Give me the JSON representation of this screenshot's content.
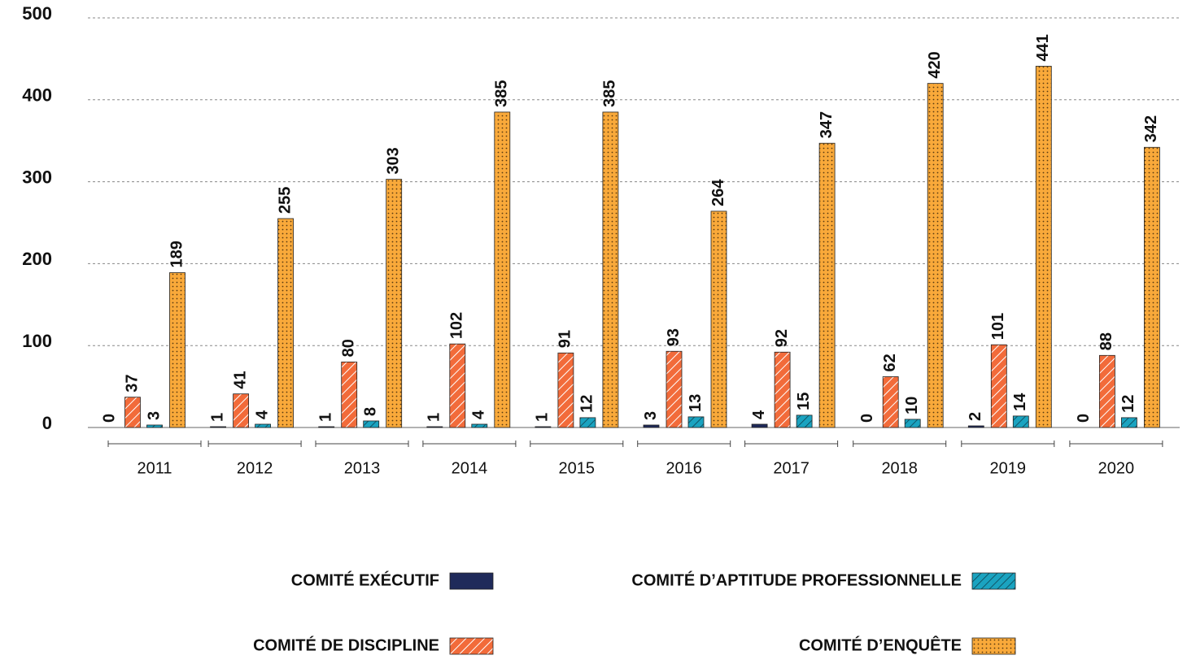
{
  "chart_data": {
    "type": "bar",
    "categories": [
      "2011",
      "2012",
      "2013",
      "2014",
      "2015",
      "2016",
      "2017",
      "2018",
      "2019",
      "2020"
    ],
    "series": [
      {
        "name": "COMITÉ EXÉCUTIF",
        "color": "#1f2a5a",
        "values": [
          0,
          1,
          1,
          1,
          1,
          3,
          4,
          0,
          2,
          0
        ]
      },
      {
        "name": "COMITÉ DE DISCIPLINE",
        "color": "#f26b3a",
        "values": [
          37,
          41,
          80,
          102,
          91,
          93,
          92,
          62,
          101,
          88
        ]
      },
      {
        "name": "COMITÉ D’APTITUDE PROFESSIONNELLE",
        "color": "#1aa3c0",
        "values": [
          3,
          4,
          8,
          4,
          12,
          13,
          15,
          10,
          14,
          12
        ]
      },
      {
        "name": "COMITÉ D’ENQUÊTE",
        "color": "#f9a93a",
        "values": [
          189,
          255,
          303,
          385,
          385,
          264,
          347,
          420,
          441,
          342
        ]
      }
    ],
    "ylim": [
      0,
      500
    ],
    "yticks": [
      0,
      100,
      200,
      300,
      400,
      500
    ],
    "grid": true
  }
}
